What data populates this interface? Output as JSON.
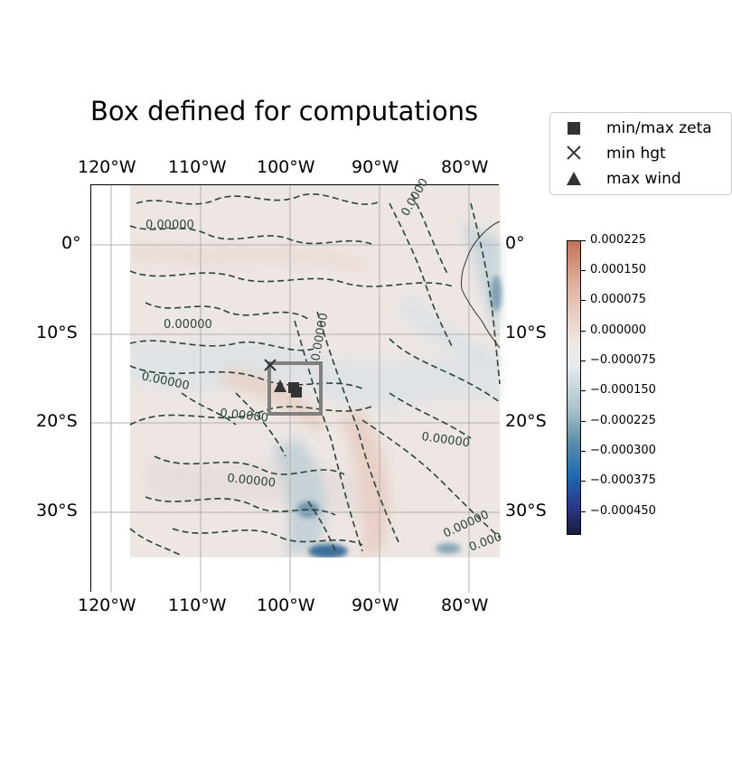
{
  "title": "Box defined for computations",
  "lon_ticks": [
    "120°W",
    "110°W",
    "100°W",
    "90°W",
    "80°W"
  ],
  "lat_ticks": [
    "0°",
    "10°S",
    "20°S",
    "30°S"
  ],
  "contour_labels": [
    "0.00000",
    "0.00000",
    "0.00000",
    "0.00000",
    "0.00000",
    "0.00000",
    "0.00000",
    "0.00000",
    "0.0000",
    "0.000"
  ],
  "legend": {
    "items": [
      {
        "label": "min/max zeta",
        "marker": "square-icon"
      },
      {
        "label": "min hgt",
        "marker": "x-icon"
      },
      {
        "label": "max wind",
        "marker": "triangle-icon"
      }
    ]
  },
  "colorbar": {
    "ticks": [
      "0.000225",
      "0.000150",
      "0.000075",
      "0.000000",
      "−0.000075",
      "−0.000150",
      "−0.000225",
      "−0.000300",
      "−0.000375",
      "−0.000450"
    ]
  },
  "colors": {
    "positive": "#c4735a",
    "neutral": "#ede6e2",
    "negative": "#1a1c40",
    "contour": "#2b4436",
    "box": "#808080",
    "marker": "#333333"
  }
}
